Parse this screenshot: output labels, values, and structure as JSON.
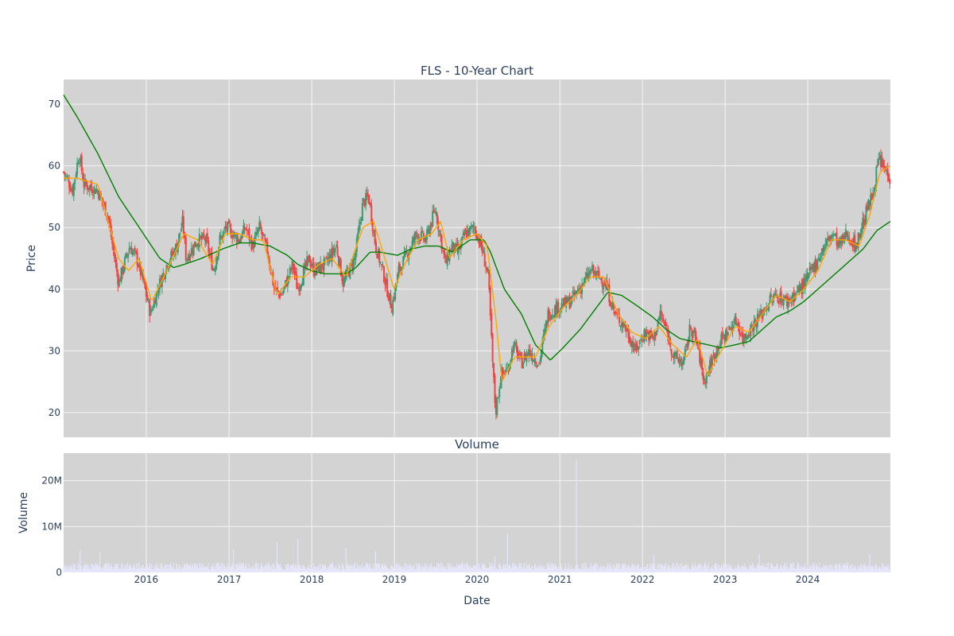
{
  "chart_data": [
    {
      "type": "candlestick",
      "title": "FLS - 10-Year Chart",
      "xlabel": "",
      "ylabel": "Price",
      "xlim": [
        "2015-01-01",
        "2024-12-31"
      ],
      "ylim": [
        16,
        74
      ],
      "x_ticks": [
        "2016",
        "2017",
        "2018",
        "2019",
        "2020",
        "2021",
        "2022",
        "2023",
        "2024"
      ],
      "y_ticks": [
        20,
        30,
        40,
        50,
        60,
        70
      ],
      "grid": true,
      "legend": "none",
      "colors": {
        "background": "#d3d3d3",
        "up": "#3d9970",
        "down": "#ef4444",
        "ma_fast": "#ffa500",
        "ma_slow": "#008000"
      },
      "close_keypoints": [
        [
          "2015-01-01",
          59
        ],
        [
          "2015-02-10",
          56
        ],
        [
          "2015-03-10",
          62
        ],
        [
          "2015-04-01",
          57
        ],
        [
          "2015-06-01",
          56
        ],
        [
          "2015-07-15",
          52
        ],
        [
          "2015-08-10",
          46
        ],
        [
          "2015-09-01",
          41
        ],
        [
          "2015-09-25",
          44
        ],
        [
          "2015-10-20",
          47
        ],
        [
          "2015-11-20",
          45
        ],
        [
          "2015-12-20",
          41
        ],
        [
          "2016-01-20",
          36
        ],
        [
          "2016-02-20",
          40
        ],
        [
          "2016-04-01",
          44
        ],
        [
          "2016-05-15",
          47
        ],
        [
          "2016-06-10",
          51
        ],
        [
          "2016-06-25",
          45
        ],
        [
          "2016-08-15",
          48
        ],
        [
          "2016-09-20",
          48
        ],
        [
          "2016-10-25",
          43
        ],
        [
          "2016-11-20",
          48
        ],
        [
          "2016-12-20",
          50
        ],
        [
          "2017-02-15",
          48
        ],
        [
          "2017-03-15",
          50
        ],
        [
          "2017-04-15",
          47
        ],
        [
          "2017-05-15",
          50
        ],
        [
          "2017-06-20",
          46
        ],
        [
          "2017-07-20",
          40
        ],
        [
          "2017-08-20",
          39
        ],
        [
          "2017-10-10",
          44
        ],
        [
          "2017-10-30",
          40
        ],
        [
          "2017-12-20",
          45
        ],
        [
          "2018-01-10",
          43
        ],
        [
          "2018-03-01",
          44
        ],
        [
          "2018-04-20",
          47
        ],
        [
          "2018-05-20",
          41
        ],
        [
          "2018-07-10",
          45
        ],
        [
          "2018-08-15",
          54
        ],
        [
          "2018-09-10",
          55
        ],
        [
          "2018-10-10",
          47
        ],
        [
          "2018-11-10",
          43
        ],
        [
          "2018-12-20",
          37
        ],
        [
          "2019-01-20",
          43
        ],
        [
          "2019-03-01",
          46
        ],
        [
          "2019-04-10",
          49
        ],
        [
          "2019-05-20",
          48
        ],
        [
          "2019-07-01",
          53
        ],
        [
          "2019-08-15",
          44
        ],
        [
          "2019-09-10",
          47
        ],
        [
          "2019-10-10",
          46
        ],
        [
          "2019-11-10",
          49
        ],
        [
          "2019-12-20",
          50
        ],
        [
          "2020-01-20",
          47
        ],
        [
          "2020-02-20",
          42
        ],
        [
          "2020-03-10",
          28
        ],
        [
          "2020-03-23",
          20
        ],
        [
          "2020-04-15",
          26
        ],
        [
          "2020-05-15",
          27
        ],
        [
          "2020-06-10",
          31
        ],
        [
          "2020-07-15",
          28
        ],
        [
          "2020-08-15",
          30
        ],
        [
          "2020-10-01",
          28
        ],
        [
          "2020-11-10",
          36
        ],
        [
          "2020-12-20",
          37
        ],
        [
          "2021-02-15",
          38
        ],
        [
          "2021-04-15",
          41
        ],
        [
          "2021-05-20",
          43
        ],
        [
          "2021-06-20",
          42
        ],
        [
          "2021-07-20",
          41
        ],
        [
          "2021-09-01",
          36
        ],
        [
          "2021-10-15",
          34
        ],
        [
          "2021-12-01",
          30
        ],
        [
          "2022-01-10",
          33
        ],
        [
          "2022-02-20",
          32
        ],
        [
          "2022-03-20",
          36
        ],
        [
          "2022-04-20",
          33
        ],
        [
          "2022-05-20",
          29
        ],
        [
          "2022-07-01",
          28
        ],
        [
          "2022-08-01",
          34
        ],
        [
          "2022-09-01",
          31
        ],
        [
          "2022-09-30",
          25
        ],
        [
          "2022-10-20",
          27
        ],
        [
          "2022-12-01",
          31
        ],
        [
          "2023-01-10",
          33
        ],
        [
          "2023-02-20",
          35
        ],
        [
          "2023-03-20",
          32
        ],
        [
          "2023-05-01",
          34
        ],
        [
          "2023-06-10",
          36
        ],
        [
          "2023-07-15",
          38
        ],
        [
          "2023-08-15",
          39
        ],
        [
          "2023-10-01",
          38
        ],
        [
          "2023-11-01",
          39
        ],
        [
          "2023-12-20",
          41
        ],
        [
          "2024-02-01",
          44
        ],
        [
          "2024-03-15",
          47
        ],
        [
          "2024-04-20",
          49
        ],
        [
          "2024-05-20",
          47
        ],
        [
          "2024-06-20",
          49
        ],
        [
          "2024-08-01",
          47
        ],
        [
          "2024-09-10",
          52
        ],
        [
          "2024-10-10",
          55
        ],
        [
          "2024-11-10",
          61
        ],
        [
          "2024-12-31",
          58
        ]
      ],
      "ma_fast_keypoints": [
        [
          "2015-01-01",
          58
        ],
        [
          "2015-03-01",
          58
        ],
        [
          "2015-06-01",
          57
        ],
        [
          "2015-09-01",
          45
        ],
        [
          "2015-10-15",
          43
        ],
        [
          "2015-11-30",
          45
        ],
        [
          "2016-01-25",
          38
        ],
        [
          "2016-04-01",
          43
        ],
        [
          "2016-06-15",
          49
        ],
        [
          "2016-08-15",
          48
        ],
        [
          "2016-10-20",
          44
        ],
        [
          "2016-12-15",
          49
        ],
        [
          "2017-02-15",
          49
        ],
        [
          "2017-04-15",
          48
        ],
        [
          "2017-06-01",
          48
        ],
        [
          "2017-08-01",
          39
        ],
        [
          "2017-10-01",
          42
        ],
        [
          "2017-12-01",
          42
        ],
        [
          "2018-02-01",
          44
        ],
        [
          "2018-04-01",
          45
        ],
        [
          "2018-06-01",
          42
        ],
        [
          "2018-08-15",
          50
        ],
        [
          "2018-10-01",
          51
        ],
        [
          "2018-11-20",
          45
        ],
        [
          "2018-12-31",
          40
        ],
        [
          "2019-02-15",
          44
        ],
        [
          "2019-04-15",
          48
        ],
        [
          "2019-06-15",
          49
        ],
        [
          "2019-07-25",
          51
        ],
        [
          "2019-09-01",
          45
        ],
        [
          "2019-11-01",
          48
        ],
        [
          "2019-12-31",
          49
        ],
        [
          "2020-02-15",
          47
        ],
        [
          "2020-03-25",
          35
        ],
        [
          "2020-04-20",
          25
        ],
        [
          "2020-06-15",
          29
        ],
        [
          "2020-09-15",
          29
        ],
        [
          "2020-11-15",
          34
        ],
        [
          "2021-01-15",
          37
        ],
        [
          "2021-03-15",
          39
        ],
        [
          "2021-05-15",
          42
        ],
        [
          "2021-07-15",
          42
        ],
        [
          "2021-09-15",
          36
        ],
        [
          "2021-11-15",
          33
        ],
        [
          "2022-01-15",
          32
        ],
        [
          "2022-03-15",
          34
        ],
        [
          "2022-05-15",
          31
        ],
        [
          "2022-07-15",
          29
        ],
        [
          "2022-09-01",
          32
        ],
        [
          "2022-10-15",
          26
        ],
        [
          "2022-12-15",
          30
        ],
        [
          "2023-02-15",
          34
        ],
        [
          "2023-04-15",
          33
        ],
        [
          "2023-06-15",
          36
        ],
        [
          "2023-08-15",
          39
        ],
        [
          "2023-10-15",
          38
        ],
        [
          "2023-12-15",
          40
        ],
        [
          "2024-02-15",
          43
        ],
        [
          "2024-04-15",
          48
        ],
        [
          "2024-06-15",
          48
        ],
        [
          "2024-08-15",
          47
        ],
        [
          "2024-10-01",
          52
        ],
        [
          "2024-11-15",
          59
        ],
        [
          "2024-12-31",
          60
        ]
      ],
      "ma_slow_keypoints": [
        [
          "2015-01-01",
          71.5
        ],
        [
          "2015-03-01",
          68
        ],
        [
          "2015-06-01",
          62
        ],
        [
          "2015-09-01",
          55
        ],
        [
          "2015-12-01",
          50
        ],
        [
          "2016-03-01",
          45
        ],
        [
          "2016-05-01",
          43.5
        ],
        [
          "2016-06-15",
          44
        ],
        [
          "2016-09-01",
          45
        ],
        [
          "2016-12-01",
          46.5
        ],
        [
          "2017-02-15",
          47.5
        ],
        [
          "2017-04-15",
          47.5
        ],
        [
          "2017-07-01",
          47
        ],
        [
          "2017-09-15",
          45.5
        ],
        [
          "2017-11-01",
          44
        ],
        [
          "2018-01-01",
          43
        ],
        [
          "2018-03-01",
          42.5
        ],
        [
          "2018-06-01",
          42.5
        ],
        [
          "2018-07-15",
          43.5
        ],
        [
          "2018-09-15",
          46
        ],
        [
          "2018-11-01",
          46
        ],
        [
          "2019-01-15",
          45.5
        ],
        [
          "2019-03-15",
          46.5
        ],
        [
          "2019-05-15",
          47
        ],
        [
          "2019-07-15",
          47
        ],
        [
          "2019-09-15",
          46
        ],
        [
          "2019-12-01",
          48
        ],
        [
          "2020-02-01",
          48
        ],
        [
          "2020-03-01",
          46
        ],
        [
          "2020-05-01",
          40
        ],
        [
          "2020-07-15",
          36
        ],
        [
          "2020-09-15",
          31
        ],
        [
          "2020-11-20",
          28.5
        ],
        [
          "2021-01-15",
          30.5
        ],
        [
          "2021-04-01",
          33.5
        ],
        [
          "2021-06-01",
          36.5
        ],
        [
          "2021-08-01",
          39.5
        ],
        [
          "2021-10-01",
          39
        ],
        [
          "2021-12-01",
          37.5
        ],
        [
          "2022-02-15",
          35.5
        ],
        [
          "2022-04-15",
          33.5
        ],
        [
          "2022-06-15",
          32
        ],
        [
          "2022-08-15",
          31.5
        ],
        [
          "2022-10-15",
          31
        ],
        [
          "2022-12-15",
          30.5
        ],
        [
          "2023-02-15",
          31
        ],
        [
          "2023-04-15",
          31.5
        ],
        [
          "2023-06-15",
          33.5
        ],
        [
          "2023-08-15",
          35.5
        ],
        [
          "2023-10-15",
          36.5
        ],
        [
          "2023-12-15",
          38
        ],
        [
          "2024-03-01",
          40.5
        ],
        [
          "2024-06-01",
          43.5
        ],
        [
          "2024-09-01",
          46.5
        ],
        [
          "2024-11-01",
          49.5
        ],
        [
          "2024-12-31",
          51
        ]
      ]
    },
    {
      "type": "bar",
      "title": "Volume",
      "xlabel": "Date",
      "ylabel": "Volume",
      "ylim": [
        0,
        26000000
      ],
      "y_ticks": [
        0,
        10000000,
        20000000
      ],
      "y_tick_labels": [
        "0",
        "10M",
        "20M"
      ],
      "x_ticks": [
        "2016",
        "2017",
        "2018",
        "2019",
        "2020",
        "2021",
        "2022",
        "2023",
        "2024"
      ],
      "grid": true,
      "colors": {
        "background": "#d3d3d3",
        "bar": "#e6e6fa"
      },
      "typical_volume": 1500000,
      "spikes": [
        [
          "2015-03-15",
          4800000
        ],
        [
          "2015-06-10",
          4300000
        ],
        [
          "2017-01-20",
          5000000
        ],
        [
          "2017-08-01",
          6600000
        ],
        [
          "2017-11-01",
          7400000
        ],
        [
          "2018-06-01",
          5200000
        ],
        [
          "2018-10-10",
          4600000
        ],
        [
          "2020-03-20",
          3500000
        ],
        [
          "2020-05-15",
          8500000
        ],
        [
          "2021-03-15",
          24600000
        ],
        [
          "2022-02-20",
          3800000
        ],
        [
          "2023-06-01",
          3900000
        ],
        [
          "2024-10-01",
          4000000
        ]
      ]
    }
  ]
}
